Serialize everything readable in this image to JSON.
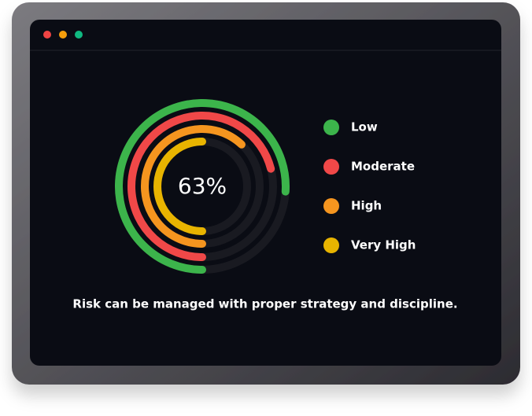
{
  "chart_data": {
    "type": "radial_bar",
    "center_label": "63%",
    "caption": "Risk can be managed with proper strategy and discipline.",
    "xlim": [
      0,
      100
    ],
    "series": [
      {
        "name": "Low",
        "color": "#3cb44b",
        "values": [
          76
        ]
      },
      {
        "name": "Moderate",
        "color": "#f04848",
        "values": [
          71
        ]
      },
      {
        "name": "High",
        "color": "#f5951f",
        "values": [
          62
        ]
      },
      {
        "name": "Very High",
        "color": "#e8b400",
        "values": [
          50
        ]
      }
    ]
  }
}
